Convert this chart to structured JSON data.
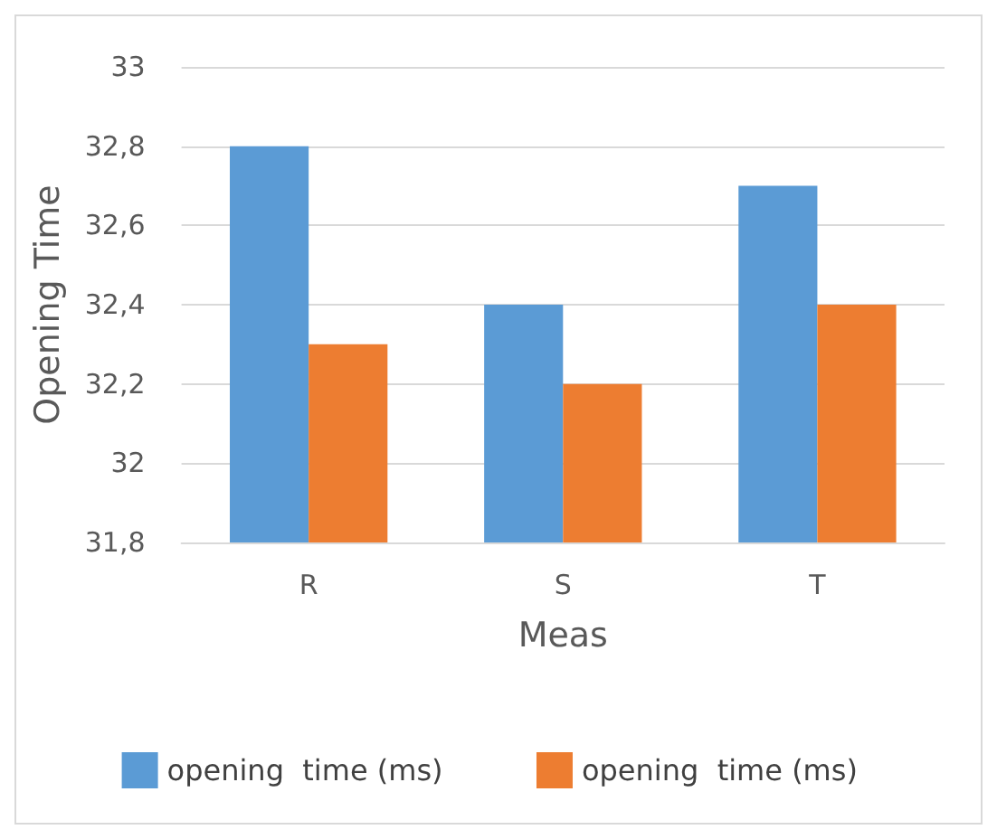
{
  "chart_data": {
    "type": "bar",
    "xlabel": "Meas",
    "ylabel": "Opening Time",
    "categories": [
      "R",
      "S",
      "T"
    ],
    "series": [
      {
        "name": "opening  time (ms)",
        "color": "#5b9bd5",
        "values": [
          32.8,
          32.4,
          32.7
        ]
      },
      {
        "name": "opening  time (ms)",
        "color": "#ed7d31",
        "values": [
          32.3,
          32.2,
          32.4
        ]
      }
    ],
    "ylim": [
      31.8,
      33
    ],
    "yticks": [
      {
        "value": 31.8,
        "label": "31,8"
      },
      32,
      {
        "value": 32.2,
        "label": "32,2"
      },
      {
        "value": 32.4,
        "label": "32,4"
      },
      {
        "value": 32.6,
        "label": "32,6"
      },
      {
        "value": 32.8,
        "label": "32,8"
      },
      33
    ],
    "grid": "y",
    "legend": "bottom"
  }
}
